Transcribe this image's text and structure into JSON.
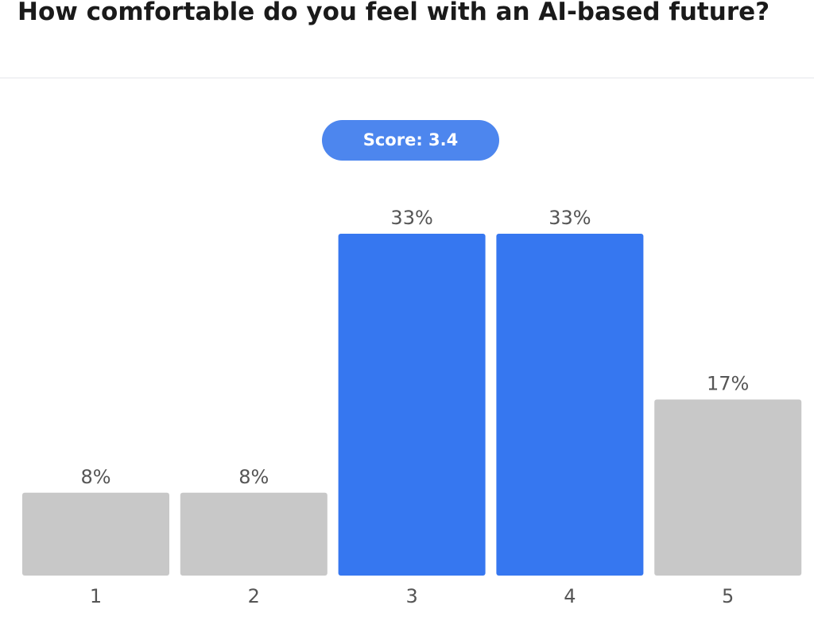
{
  "question": {
    "title": "How comfortable do you feel with an AI-based future?"
  },
  "score": {
    "label": "Score: 3.4"
  },
  "colors": {
    "highlight": "#3677f0",
    "neutral": "#c8c8c8",
    "badge": "#4d86ee",
    "label_text": "#555555"
  },
  "chart_data": {
    "type": "bar",
    "categories": [
      "1",
      "2",
      "3",
      "4",
      "5"
    ],
    "values": [
      8,
      8,
      33,
      33,
      17
    ],
    "value_labels": [
      "8%",
      "8%",
      "33%",
      "33%",
      "17%"
    ],
    "highlighted": [
      false,
      false,
      true,
      true,
      false
    ],
    "title": "How comfortable do you feel with an AI-based future?",
    "xlabel": "",
    "ylabel": "",
    "ylim": [
      0,
      33
    ],
    "grid": false,
    "legend": "none"
  }
}
